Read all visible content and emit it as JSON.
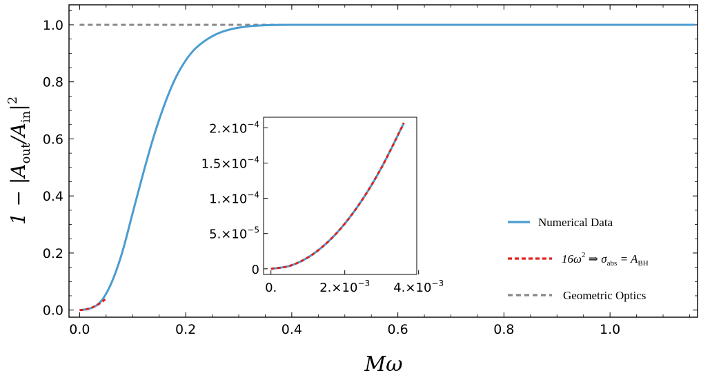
{
  "chart_data": [
    {
      "type": "line",
      "title": "",
      "xlabel": "Mω",
      "ylabel": "1 − |A_out/A_in|²",
      "xlim": [
        -0.02,
        1.165
      ],
      "ylim": [
        -0.025,
        1.07
      ],
      "x_ticks": [
        "0.0",
        "0.2",
        "0.4",
        "0.6",
        "0.8",
        "1.0"
      ],
      "y_ticks": [
        "0.0",
        "0.2",
        "0.4",
        "0.6",
        "0.8",
        "1.0"
      ],
      "legend_position": "bottom-right",
      "series": [
        {
          "name": "Numerical Data",
          "color": "#4a9cd0",
          "style": "solid",
          "x": [
            0.0,
            0.02,
            0.04,
            0.06,
            0.08,
            0.1,
            0.12,
            0.14,
            0.16,
            0.18,
            0.2,
            0.22,
            0.25,
            0.28,
            0.32,
            0.36,
            0.4,
            0.5,
            0.6,
            0.8,
            1.0,
            1.16
          ],
          "y": [
            0.0,
            0.006,
            0.03,
            0.095,
            0.2,
            0.34,
            0.48,
            0.61,
            0.72,
            0.81,
            0.875,
            0.92,
            0.96,
            0.982,
            0.995,
            0.999,
            1.0,
            1.0,
            1.0,
            1.0,
            1.0,
            1.0
          ]
        },
        {
          "name": "16ω² ⇒ σabs = ABH",
          "color": "#e3211c",
          "style": "dashed",
          "x": [
            0.0,
            0.01,
            0.02,
            0.03,
            0.04,
            0.05
          ],
          "y": [
            0.0,
            0.0016,
            0.0064,
            0.0144,
            0.0256,
            0.04
          ]
        },
        {
          "name": "Geometric Optics",
          "color": "#888888",
          "style": "dashed",
          "x": [
            0.0,
            1.16
          ],
          "y": [
            1.0,
            1.0
          ]
        }
      ]
    },
    {
      "type": "line",
      "title": "inset",
      "xlim": [
        -0.0002,
        0.00395
      ],
      "ylim": [
        -8e-06,
        0.000215
      ],
      "x_ticks": [
        {
          "value": 0.0,
          "mantissa": "0.",
          "exp": ""
        },
        {
          "value": 0.002,
          "mantissa": "2.×10",
          "exp": "−3"
        },
        {
          "value": 0.004,
          "mantissa": "4.×10",
          "exp": "−3"
        }
      ],
      "y_ticks": [
        {
          "value": 0.0,
          "mantissa": "0",
          "exp": ""
        },
        {
          "value": 5e-05,
          "mantissa": "5.×10",
          "exp": "−5"
        },
        {
          "value": 0.0001,
          "mantissa": "1.×10",
          "exp": "−4"
        },
        {
          "value": 0.00015,
          "mantissa": "1.5×10",
          "exp": "−4"
        },
        {
          "value": 0.0002,
          "mantissa": "2.×10",
          "exp": "−4"
        }
      ],
      "series": [
        {
          "name": "Numerical Data",
          "color": "#4a9cd0",
          "style": "solid",
          "x": [
            0.0,
            0.0005,
            0.001,
            0.0015,
            0.002,
            0.0025,
            0.003,
            0.0035,
            0.0036
          ],
          "y": [
            0.0,
            4e-06,
            1.6e-05,
            3.6e-05,
            6.4e-05,
            0.0001,
            0.000144,
            0.000196,
            0.000207
          ]
        },
        {
          "name": "16ω² ⇒ σabs = ABH",
          "color": "#e3211c",
          "style": "dashed",
          "x": [
            0.0,
            0.0005,
            0.001,
            0.0015,
            0.002,
            0.0025,
            0.003,
            0.0035,
            0.0036
          ],
          "y": [
            0.0,
            4e-06,
            1.6e-05,
            3.6e-05,
            6.4e-05,
            0.0001,
            0.000144,
            0.000196,
            0.000207
          ]
        }
      ]
    }
  ],
  "legend": {
    "numerical": "Numerical Data",
    "fit_prefix": "16ω",
    "fit_sup": "2",
    "fit_arrow": " ⇒ σ",
    "fit_sub1": "abs",
    "fit_eq": " = A",
    "fit_sub2": "BH",
    "geometric": "Geometric Optics"
  },
  "labels": {
    "x_main": "Mω",
    "y_prefix": "1 − |A",
    "y_sub_out": "out",
    "y_slash": "/A",
    "y_sub_in": "in",
    "y_bar": "|",
    "y_sup": "2"
  }
}
